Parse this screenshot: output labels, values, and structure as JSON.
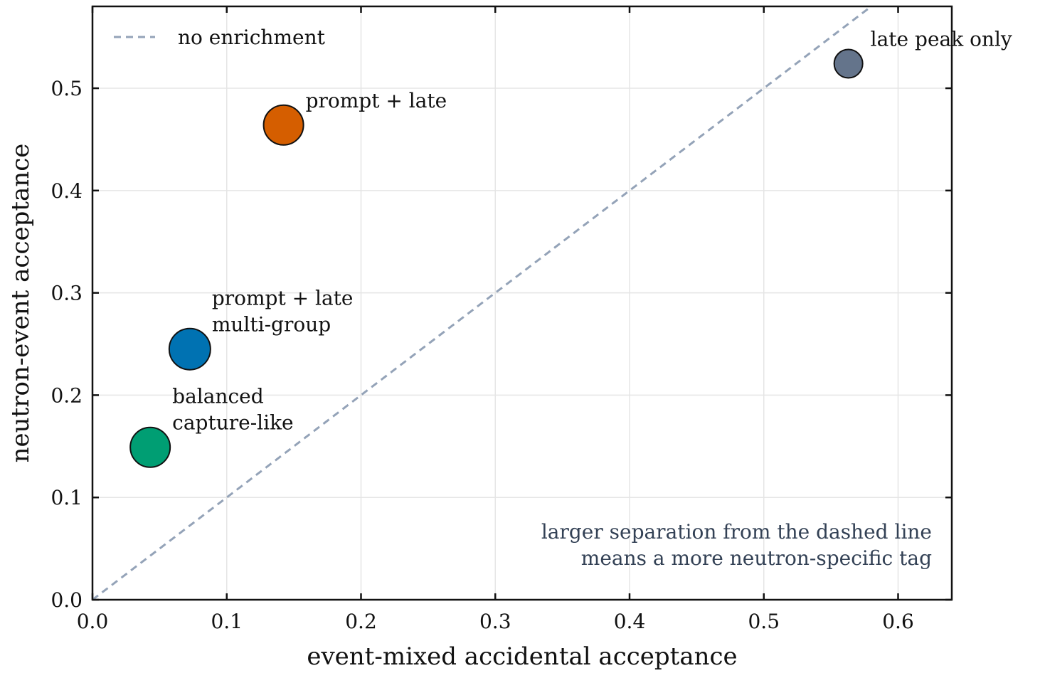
{
  "chart_data": {
    "type": "scatter",
    "xlabel": "event-mixed accidental acceptance",
    "ylabel": "neutron-event acceptance",
    "xlim": [
      0,
      0.64
    ],
    "ylim": [
      0,
      0.58
    ],
    "xticks": [
      {
        "value": 0,
        "label": "0.0"
      },
      0.1,
      0.2,
      0.3,
      0.4,
      0.5,
      0.6
    ],
    "yticks": [
      {
        "value": 0,
        "label": "0.0"
      },
      0.1,
      0.2,
      0.3,
      0.4,
      0.5
    ],
    "grid": true,
    "legend": "upper left",
    "reference_line": {
      "name": "no enrichment",
      "color": "#94a3b8",
      "style": "dashed",
      "x": [
        0,
        0.58
      ],
      "y": [
        0,
        0.58
      ]
    },
    "points": [
      {
        "label": [
          "balanced",
          "capture-like"
        ],
        "x": 0.043,
        "y": 0.149,
        "color": "#009e73",
        "size": 28
      },
      {
        "label": [
          "prompt + late",
          "multi-group"
        ],
        "x": 0.0725,
        "y": 0.245,
        "color": "#0072b2",
        "size": 29
      },
      {
        "label": [
          "prompt + late"
        ],
        "x": 0.1423,
        "y": 0.464,
        "color": "#d55e00",
        "size": 28
      },
      {
        "label": [
          "late peak only"
        ],
        "x": 0.563,
        "y": 0.524,
        "color": "#64748b",
        "size": 20
      }
    ],
    "annotation": [
      "larger separation from the dashed line",
      "means a more neutron-specific tag"
    ]
  }
}
